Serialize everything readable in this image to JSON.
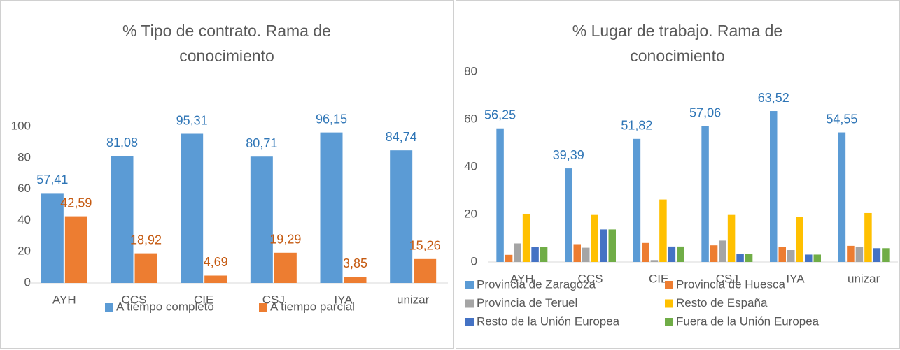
{
  "chart_data": [
    {
      "type": "bar",
      "title": "% Tipo de contrato. Rama de conocimiento",
      "categories": [
        "AYH",
        "CCS",
        "CIE",
        "CSJ",
        "IYA",
        "unizar"
      ],
      "series": [
        {
          "name": "A tiempo completo",
          "color": "#5b9bd5",
          "values": [
            57.41,
            81.08,
            95.31,
            80.71,
            96.15,
            84.74
          ],
          "value_labels": [
            "57,41",
            "81,08",
            "95,31",
            "80,71",
            "96,15",
            "84,74"
          ]
        },
        {
          "name": "A tiempo parcial",
          "color": "#ed7d31",
          "values": [
            42.59,
            18.92,
            4.69,
            19.29,
            3.85,
            15.26
          ],
          "value_labels": [
            "42,59",
            "18,92",
            "4,69",
            "19,29",
            "3,85",
            "15,26"
          ]
        }
      ],
      "ylim": [
        0,
        100
      ],
      "yticks": [
        0,
        20,
        40,
        60,
        80,
        100
      ],
      "grid": false,
      "legend": "bottom"
    },
    {
      "type": "bar",
      "title": "% Lugar de trabajo. Rama de conocimiento",
      "categories": [
        "AYH",
        "CCS",
        "CIE",
        "CSJ",
        "IYA",
        "unizar"
      ],
      "series": [
        {
          "name": "Provincia de Zaragoza",
          "color": "#5b9bd5",
          "values": [
            56.25,
            39.39,
            51.82,
            57.06,
            63.52,
            54.55
          ],
          "value_labels": [
            "56,25",
            "39,39",
            "51,82",
            "57,06",
            "63,52",
            "54,55"
          ]
        },
        {
          "name": "Provincia de Huesca",
          "color": "#ed7d31",
          "values": [
            3,
            7.5,
            8,
            7,
            6.2,
            6.8
          ]
        },
        {
          "name": "Provincia de Teruel",
          "color": "#a5a5a5",
          "values": [
            7.8,
            6,
            0.8,
            9,
            5,
            6.2
          ]
        },
        {
          "name": "Resto de España",
          "color": "#ffc000",
          "values": [
            20.3,
            19.8,
            26.3,
            19.8,
            18.9,
            20.6
          ]
        },
        {
          "name": "Resto de la Unión Europea",
          "color": "#4472c4",
          "values": [
            6.2,
            13.7,
            6.5,
            3.5,
            3.1,
            5.8
          ]
        },
        {
          "name": "Fuera de la Unión Europea",
          "color": "#70ad47",
          "values": [
            6.2,
            13.7,
            6.5,
            3.5,
            3.1,
            5.8
          ]
        }
      ],
      "ylim": [
        0,
        80
      ],
      "yticks": [
        0,
        20,
        40,
        60,
        80
      ],
      "grid": false,
      "legend": "bottom"
    }
  ]
}
